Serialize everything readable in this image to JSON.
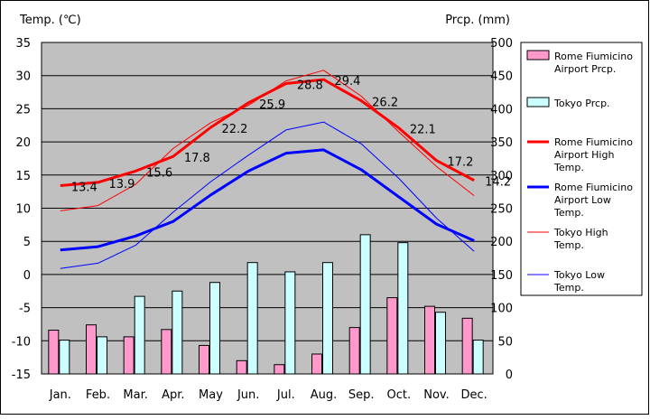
{
  "chart_data": {
    "type": "bar+line",
    "categories": [
      "Jan.",
      "Feb.",
      "Mar.",
      "Apr.",
      "May",
      "Jun.",
      "Jul.",
      "Aug.",
      "Sep.",
      "Oct.",
      "Nov.",
      "Dec."
    ],
    "left_axis": {
      "title": "Temp. (℃)",
      "ticks": [
        35,
        30,
        25,
        20,
        15,
        10,
        5,
        0,
        -5,
        -10,
        -15
      ],
      "range": [
        -15,
        35
      ]
    },
    "right_axis": {
      "title": "Prcp. (mm)",
      "ticks": [
        500,
        450,
        400,
        350,
        300,
        250,
        200,
        150,
        100,
        50,
        0
      ],
      "range": [
        0,
        500
      ]
    },
    "bar_series": [
      {
        "name": "Rome Fiumicino Airport Prcp.",
        "legend_lines": [
          "Rome Fiumicino",
          "Airport Prcp."
        ],
        "color": "#ff99cc",
        "values": [
          66,
          74,
          56,
          67,
          43,
          20,
          14,
          30,
          70,
          115,
          102,
          84
        ]
      },
      {
        "name": "Tokyo Prcp.",
        "legend_lines": [
          "Tokyo Prcp."
        ],
        "color": "#ccffff",
        "values": [
          51,
          56,
          117,
          125,
          138,
          168,
          154,
          168,
          210,
          198,
          93,
          51
        ]
      }
    ],
    "line_series": [
      {
        "name": "Rome Fiumicino Airport High Temp.",
        "legend_lines": [
          "Rome Fiumicino",
          "Airport High",
          "Temp."
        ],
        "color": "#ff0000",
        "width": 3,
        "values": [
          13.4,
          13.9,
          15.6,
          17.8,
          22.2,
          25.9,
          28.8,
          29.4,
          26.2,
          22.1,
          17.2,
          14.2
        ],
        "labels": [
          "13.4",
          "13.9",
          "15.6",
          "17.8",
          "22.2",
          "25.9",
          "28.8",
          "29.4",
          "26.2",
          "22.1",
          "17.2",
          "14.2"
        ]
      },
      {
        "name": "Rome Fiumicino Airport Low Temp.",
        "legend_lines": [
          "Rome Fiumicino",
          "Airport Low",
          "Temp."
        ],
        "color": "#0000ff",
        "width": 3,
        "values": [
          3.7,
          4.2,
          5.8,
          8.0,
          12.0,
          15.6,
          18.3,
          18.8,
          15.8,
          11.7,
          7.6,
          5.1
        ]
      },
      {
        "name": "Tokyo High Temp.",
        "legend_lines": [
          "Tokyo High",
          "Temp."
        ],
        "color": "#ff0000",
        "width": 1,
        "values": [
          9.6,
          10.4,
          13.6,
          19.0,
          22.9,
          25.5,
          29.2,
          30.8,
          26.9,
          21.5,
          16.3,
          11.9
        ]
      },
      {
        "name": "Tokyo Low Temp.",
        "legend_lines": [
          "Tokyo Low",
          "Temp."
        ],
        "color": "#0000ff",
        "width": 1,
        "values": [
          0.9,
          1.7,
          4.4,
          9.4,
          14.0,
          18.0,
          21.8,
          23.0,
          19.7,
          14.5,
          8.5,
          3.5
        ]
      }
    ]
  }
}
